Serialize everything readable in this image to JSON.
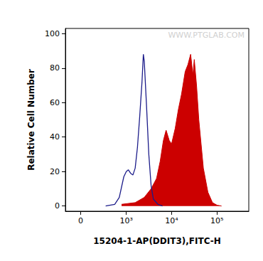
{
  "chart_data": {
    "type": "line",
    "x_label": "15204-1-AP(DDIT3),FITC-H",
    "y_label": "Relative Cell Number",
    "annotation": "WWW.PTGLAB.COM",
    "log": "x",
    "grid": false,
    "xlim": [
      -170,
      500000
    ],
    "xticks": [
      0,
      {
        "value": 1000,
        "label": "10³"
      },
      {
        "value": 10000,
        "label": "10⁴"
      },
      {
        "value": 100000,
        "label": "10⁵"
      }
    ],
    "ylim": [
      -3,
      103
    ],
    "yticks": [
      0,
      20,
      40,
      60,
      80,
      100
    ],
    "series": [
      {
        "type": "line",
        "color": "#1c1c8a",
        "x": [
          327,
          544,
          694,
          880,
          1000,
          1114,
          1251,
          1406,
          1579,
          1772,
          1990,
          2234,
          2395,
          2508,
          2814,
          3158,
          3545,
          3980,
          5012,
          6310
        ],
        "values": [
          0,
          1,
          5,
          17,
          20,
          21,
          19,
          18,
          22,
          34,
          52,
          72,
          88,
          84,
          58,
          30,
          12,
          4,
          1,
          0
        ]
      },
      {
        "type": "area",
        "color": "#cc0000",
        "x": [
          782,
          1579,
          2508,
          3545,
          4677,
          5623,
          6607,
          7586,
          8913,
          10000,
          12023,
          14125,
          16596,
          19953,
          22909,
          26303,
          29512,
          31623,
          35481,
          39811,
          50119,
          63096,
          79433,
          100000,
          125893
        ],
        "values": [
          1,
          2,
          5,
          10,
          16,
          26,
          38,
          44,
          38,
          36,
          45,
          56,
          65,
          78,
          82,
          88,
          76,
          85,
          70,
          50,
          22,
          8,
          2,
          0.5,
          0
        ]
      }
    ]
  }
}
